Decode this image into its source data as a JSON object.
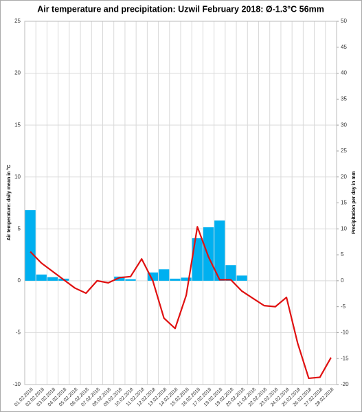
{
  "chart_data": {
    "type": "combo",
    "title": "Air temperature and precipitation: Uzwil February 2018: Ø-1.3°C 56mm",
    "ylabel": "Air temperature: daily mean in °C",
    "y2label": "Precipitation per day in mm",
    "categories": [
      "01.02.2018",
      "02.02.2018",
      "03.02.2018",
      "04.02.2018",
      "05.02.2018",
      "06.02.2018",
      "07.02.2018",
      "08.02.2018",
      "09.02.2018",
      "10.02.2018",
      "11.02.2018",
      "12.02.2018",
      "13.02.2018",
      "14.02.2018",
      "15.02.2018",
      "16.02.2018",
      "17.02.2018",
      "18.02.2018",
      "19.02.2018",
      "20.02.2018",
      "21.02.2018",
      "22.02.2018",
      "23.02.2018",
      "24.02.2018",
      "25.02.2018",
      "26.02.2018",
      "27.02.2018",
      "28.02.2018"
    ],
    "series": [
      {
        "type": "bar",
        "axis": "y2",
        "color": "#00b0f0",
        "values": [
          13.6,
          1.2,
          0.7,
          0.4,
          0,
          0,
          0,
          0,
          0.8,
          0.3,
          0,
          1.6,
          2.2,
          0.4,
          0.6,
          8.2,
          10.3,
          11.6,
          3.0,
          1.0,
          0,
          0,
          0,
          0,
          0,
          0,
          0,
          0
        ]
      },
      {
        "type": "line",
        "axis": "y",
        "color": "#e01010",
        "values": [
          2.8,
          1.7,
          0.9,
          0.1,
          -0.7,
          -1.2,
          0.0,
          -0.2,
          0.3,
          0.4,
          2.1,
          0.0,
          -3.6,
          -4.6,
          -1.4,
          5.2,
          2.3,
          0.1,
          0.1,
          -1.0,
          -1.7,
          -2.4,
          -2.5,
          -1.6,
          -6.0,
          -9.4,
          -9.3,
          -7.4
        ]
      }
    ],
    "ylim": [
      -10,
      25
    ],
    "yticks": [
      -10,
      -5,
      0,
      5,
      10,
      15,
      20,
      25
    ],
    "y2lim": [
      -20,
      50
    ],
    "y2ticks": [
      -20,
      -15,
      -10,
      -5,
      0,
      5,
      10,
      15,
      20,
      25,
      30,
      35,
      40,
      45,
      50
    ],
    "grid": true
  }
}
